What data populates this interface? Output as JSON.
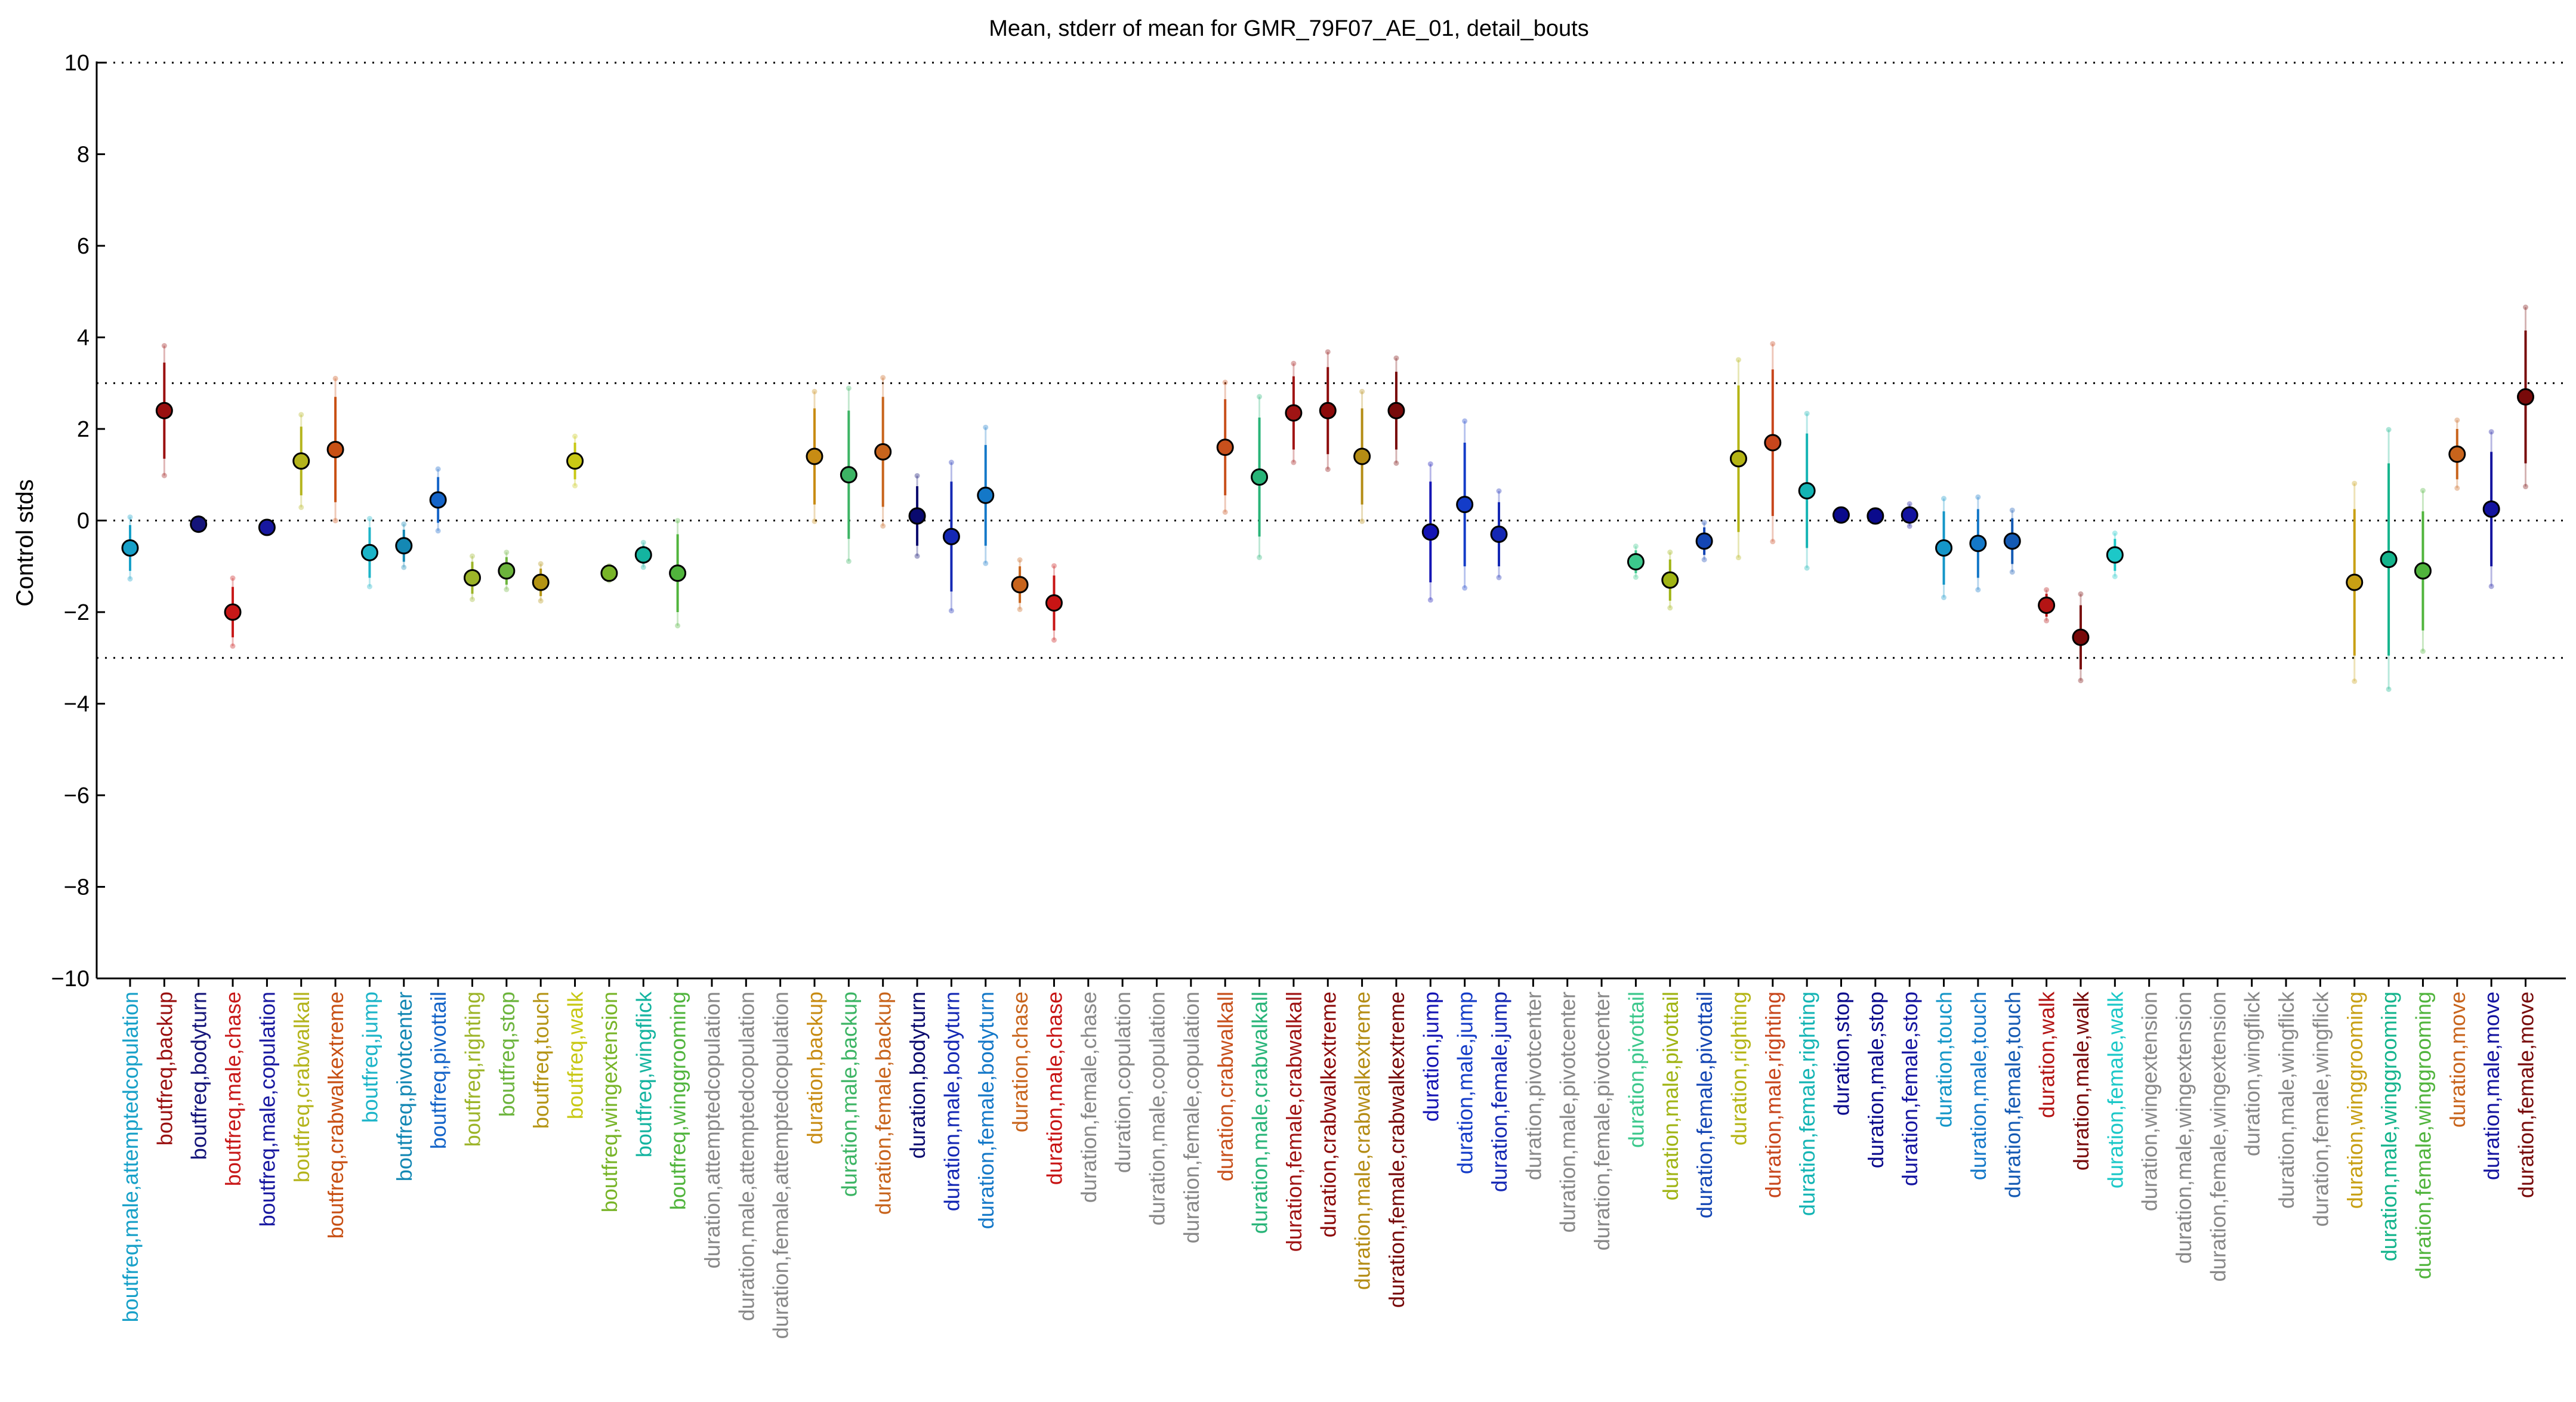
{
  "chart_data": {
    "type": "scatter",
    "title": "Mean, stderr of mean for GMR_79F07_AE_01, detail_bouts",
    "xlabel": "",
    "ylabel": "Control stds",
    "ylim": [
      -10,
      10
    ],
    "yticks": [
      -10,
      -8,
      -6,
      -4,
      -2,
      0,
      2,
      4,
      6,
      8,
      10
    ],
    "grid": "dotted horizontal lines at -10, -3, 0, 3, 10",
    "legend": "none",
    "points": [
      {
        "label": "boutfreq,male,attemptedcopulation",
        "y": -0.6,
        "err": 0.5,
        "color": "#17a0c8"
      },
      {
        "label": "boutfreq,backup",
        "y": 2.4,
        "err": 1.05,
        "color": "#9a1010"
      },
      {
        "label": "boutfreq,bodyturn",
        "y": -0.08,
        "err": 0.1,
        "color": "#14147a"
      },
      {
        "label": "boutfreq,male,chase",
        "y": -2.0,
        "err": 0.55,
        "color": "#c81818"
      },
      {
        "label": "boutfreq,male,copulation",
        "y": -0.15,
        "err": 0.08,
        "color": "#1818a0"
      },
      {
        "label": "boutfreq,crabwalkall",
        "y": 1.3,
        "err": 0.75,
        "color": "#b4b41c"
      },
      {
        "label": "boutfreq,crabwalkextreme",
        "y": 1.55,
        "err": 1.15,
        "color": "#c85014"
      },
      {
        "label": "boutfreq,jump",
        "y": -0.7,
        "err": 0.55,
        "color": "#1cb4c8"
      },
      {
        "label": "boutfreq,pivotcenter",
        "y": -0.55,
        "err": 0.35,
        "color": "#1488b4"
      },
      {
        "label": "boutfreq,pivottail",
        "y": 0.45,
        "err": 0.5,
        "color": "#1464c8"
      },
      {
        "label": "boutfreq,righting",
        "y": -1.25,
        "err": 0.35,
        "color": "#9cb428"
      },
      {
        "label": "boutfreq,stop",
        "y": -1.1,
        "err": 0.3,
        "color": "#6cb43c"
      },
      {
        "label": "boutfreq,touch",
        "y": -1.35,
        "err": 0.3,
        "color": "#b49414"
      },
      {
        "label": "boutfreq,walk",
        "y": 1.3,
        "err": 0.4,
        "color": "#c8c814"
      },
      {
        "label": "boutfreq,wingextension",
        "y": -1.15,
        "err": 0.12,
        "color": "#78b428"
      },
      {
        "label": "boutfreq,wingflick",
        "y": -0.75,
        "err": 0.2,
        "color": "#14b4a0"
      },
      {
        "label": "boutfreq,winggrooming",
        "y": -1.15,
        "err": 0.85,
        "color": "#50b43c"
      },
      {
        "label": "duration,attemptedcopulation",
        "y": null,
        "err": null,
        "color": "#888888"
      },
      {
        "label": "duration,male,attemptedcopulation",
        "y": null,
        "err": null,
        "color": "#888888"
      },
      {
        "label": "duration,female,attemptedcopulation",
        "y": null,
        "err": null,
        "color": "#888888"
      },
      {
        "label": "duration,backup",
        "y": 1.4,
        "err": 1.05,
        "color": "#c88c14"
      },
      {
        "label": "duration,male,backup",
        "y": 1.0,
        "err": 1.4,
        "color": "#3cb464"
      },
      {
        "label": "duration,female,backup",
        "y": 1.5,
        "err": 1.2,
        "color": "#c8641c"
      },
      {
        "label": "duration,bodyturn",
        "y": 0.1,
        "err": 0.65,
        "color": "#0a0a6e"
      },
      {
        "label": "duration,male,bodyturn",
        "y": -0.35,
        "err": 1.2,
        "color": "#1428b4"
      },
      {
        "label": "duration,female,bodyturn",
        "y": 0.55,
        "err": 1.1,
        "color": "#1478c8"
      },
      {
        "label": "duration,chase",
        "y": -1.4,
        "err": 0.4,
        "color": "#c8641c"
      },
      {
        "label": "duration,male,chase",
        "y": -1.8,
        "err": 0.6,
        "color": "#c81414"
      },
      {
        "label": "duration,female,chase",
        "y": null,
        "err": null,
        "color": "#888888"
      },
      {
        "label": "duration,copulation",
        "y": null,
        "err": null,
        "color": "#888888"
      },
      {
        "label": "duration,male,copulation",
        "y": null,
        "err": null,
        "color": "#888888"
      },
      {
        "label": "duration,female,copulation",
        "y": null,
        "err": null,
        "color": "#888888"
      },
      {
        "label": "duration,crabwalkall",
        "y": 1.6,
        "err": 1.05,
        "color": "#c8501c"
      },
      {
        "label": "duration,male,crabwalkall",
        "y": 0.95,
        "err": 1.3,
        "color": "#28b478"
      },
      {
        "label": "duration,female,crabwalkall",
        "y": 2.35,
        "err": 0.8,
        "color": "#a01414"
      },
      {
        "label": "duration,crabwalkextreme",
        "y": 2.4,
        "err": 0.95,
        "color": "#8c0a0a"
      },
      {
        "label": "duration,male,crabwalkextreme",
        "y": 1.4,
        "err": 1.05,
        "color": "#b48c14"
      },
      {
        "label": "duration,female,crabwalkextreme",
        "y": 2.4,
        "err": 0.85,
        "color": "#780a0a"
      },
      {
        "label": "duration,jump",
        "y": -0.25,
        "err": 1.1,
        "color": "#1414b4"
      },
      {
        "label": "duration,male,jump",
        "y": 0.35,
        "err": 1.35,
        "color": "#143cc8"
      },
      {
        "label": "duration,female,jump",
        "y": -0.3,
        "err": 0.7,
        "color": "#1428b4"
      },
      {
        "label": "duration,pivotcenter",
        "y": null,
        "err": null,
        "color": "#888888"
      },
      {
        "label": "duration,male,pivotcenter",
        "y": null,
        "err": null,
        "color": "#888888"
      },
      {
        "label": "duration,female,pivotcenter",
        "y": null,
        "err": null,
        "color": "#888888"
      },
      {
        "label": "duration,pivottail",
        "y": -0.9,
        "err": 0.25,
        "color": "#3cc88c"
      },
      {
        "label": "duration,male,pivottail",
        "y": -1.3,
        "err": 0.45,
        "color": "#a0b414"
      },
      {
        "label": "duration,female,pivottail",
        "y": -0.45,
        "err": 0.3,
        "color": "#1446b4"
      },
      {
        "label": "duration,righting",
        "y": 1.35,
        "err": 1.6,
        "color": "#b4b414"
      },
      {
        "label": "duration,male,righting",
        "y": 1.7,
        "err": 1.6,
        "color": "#c8461c"
      },
      {
        "label": "duration,female,righting",
        "y": 0.65,
        "err": 1.25,
        "color": "#14b4b4"
      },
      {
        "label": "duration,stop",
        "y": 0.12,
        "err": 0.08,
        "color": "#0a0a8c"
      },
      {
        "label": "duration,male,stop",
        "y": 0.1,
        "err": 0.08,
        "color": "#0a0a8c"
      },
      {
        "label": "duration,female,stop",
        "y": 0.12,
        "err": 0.18,
        "color": "#1414a0"
      },
      {
        "label": "duration,touch",
        "y": -0.6,
        "err": 0.8,
        "color": "#1496c8"
      },
      {
        "label": "duration,male,touch",
        "y": -0.5,
        "err": 0.75,
        "color": "#1478c8"
      },
      {
        "label": "duration,female,touch",
        "y": -0.45,
        "err": 0.5,
        "color": "#145ab4"
      },
      {
        "label": "duration,walk",
        "y": -1.85,
        "err": 0.25,
        "color": "#b41414"
      },
      {
        "label": "duration,male,walk",
        "y": -2.55,
        "err": 0.7,
        "color": "#780a0a"
      },
      {
        "label": "duration,female,walk",
        "y": -0.75,
        "err": 0.35,
        "color": "#1cc8c8"
      },
      {
        "label": "duration,wingextension",
        "y": null,
        "err": null,
        "color": "#888888"
      },
      {
        "label": "duration,male,wingextension",
        "y": null,
        "err": null,
        "color": "#888888"
      },
      {
        "label": "duration,female,wingextension",
        "y": null,
        "err": null,
        "color": "#888888"
      },
      {
        "label": "duration,wingflick",
        "y": null,
        "err": null,
        "color": "#888888"
      },
      {
        "label": "duration,male,wingflick",
        "y": null,
        "err": null,
        "color": "#888888"
      },
      {
        "label": "duration,female,wingflick",
        "y": null,
        "err": null,
        "color": "#888888"
      },
      {
        "label": "duration,winggrooming",
        "y": -1.35,
        "err": 1.6,
        "color": "#c8a014"
      },
      {
        "label": "duration,male,winggrooming",
        "y": -0.85,
        "err": 2.1,
        "color": "#14b48c"
      },
      {
        "label": "duration,female,winggrooming",
        "y": -1.1,
        "err": 1.3,
        "color": "#50b43c"
      },
      {
        "label": "duration,move",
        "y": 1.45,
        "err": 0.55,
        "color": "#c8641c"
      },
      {
        "label": "duration,male,move",
        "y": 0.25,
        "err": 1.25,
        "color": "#1414a0"
      },
      {
        "label": "duration,female,move",
        "y": 2.7,
        "err": 1.45,
        "color": "#780a0a"
      }
    ]
  }
}
